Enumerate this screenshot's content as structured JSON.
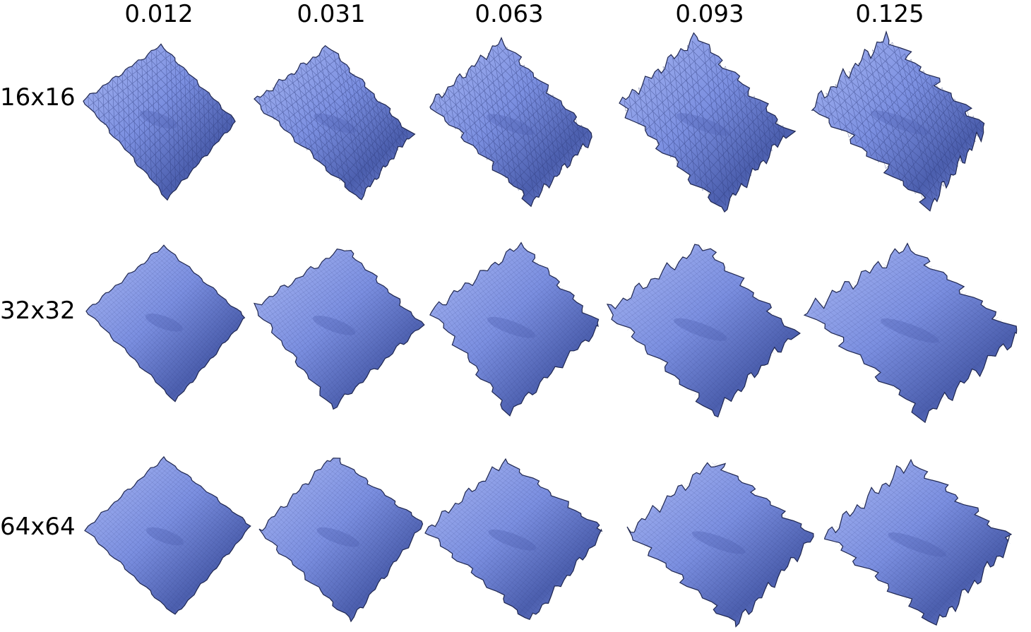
{
  "columns": [
    {
      "label": "0.012"
    },
    {
      "label": "0.031"
    },
    {
      "label": "0.063"
    },
    {
      "label": "0.093"
    },
    {
      "label": "0.125"
    }
  ],
  "rows": [
    {
      "label": "16x16",
      "grid": 16
    },
    {
      "label": "32x32",
      "grid": 32
    },
    {
      "label": "64x64",
      "grid": 64
    }
  ],
  "colors": {
    "cloth": "#7b8fe0",
    "cloth_dark": "#4c5fae",
    "cloth_light": "#a9b7f2",
    "mesh_line": "#2e3a7a",
    "sphere": "#a9a9a9",
    "text": "#000000"
  }
}
